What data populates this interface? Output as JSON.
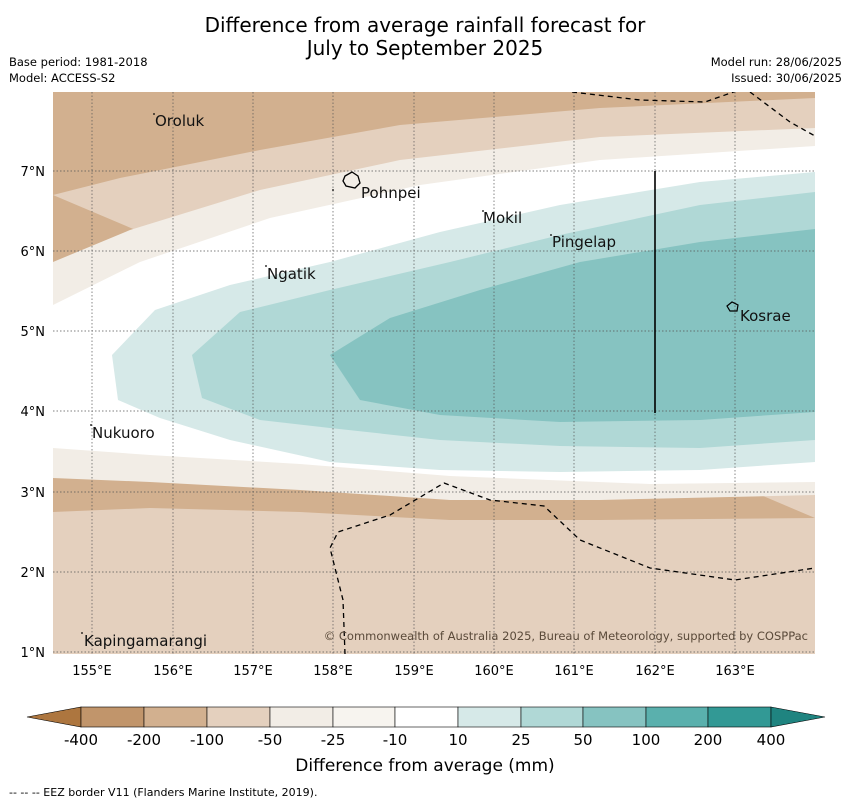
{
  "header": {
    "title_line1": "Difference from average rainfall forecast for",
    "title_line2": "July to September 2025",
    "base_period": "Base period: 1981-2018",
    "model": "Model: ACCESS-S2",
    "model_run": "Model run: 28/06/2025",
    "issued": "Issued: 30/06/2025"
  },
  "map": {
    "lon_ticks": [
      "155°E",
      "156°E",
      "157°E",
      "158°E",
      "159°E",
      "160°E",
      "161°E",
      "162°E",
      "163°E"
    ],
    "lat_ticks": [
      "1°N",
      "2°N",
      "3°N",
      "4°N",
      "5°N",
      "6°N",
      "7°N"
    ],
    "places": [
      {
        "name": "Oroluk"
      },
      {
        "name": "Pohnpei"
      },
      {
        "name": "Mokil"
      },
      {
        "name": "Pingelap"
      },
      {
        "name": "Ngatik"
      },
      {
        "name": "Kosrae"
      },
      {
        "name": "Nukuoro"
      },
      {
        "name": "Kapingamarangi"
      }
    ],
    "copyright": "© Commonwealth of Australia 2025, Bureau of Meteorology, supported by COSPPac"
  },
  "colorbar": {
    "labels": [
      "-400",
      "-200",
      "-100",
      "-50",
      "-25",
      "-10",
      "10",
      "25",
      "50",
      "100",
      "200",
      "400"
    ],
    "colors": [
      "#ad763f",
      "#c1956b",
      "#d2b08f",
      "#e4d0be",
      "#f2ede6",
      "#ffffff",
      "#d6e9e8",
      "#b0d8d6",
      "#86c3c1",
      "#5ab0ad",
      "#329995",
      "#1f8480"
    ],
    "title": "Difference from average (mm)"
  },
  "footnote": "--  --  -- EEZ border V11 (Flanders Marine Institute, 2019)."
}
